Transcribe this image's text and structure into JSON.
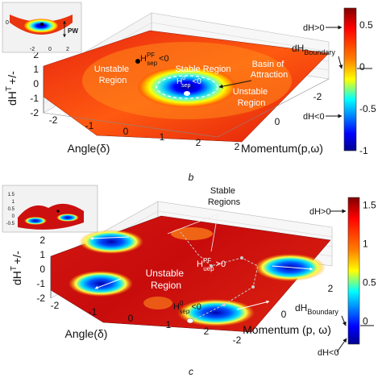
{
  "panel_b": {
    "caption": "b",
    "z_axis_label": "dH",
    "z_axis_superscript": "T",
    "z_axis_suffix": "+/-",
    "z_ticks": [
      "2",
      "1",
      "0",
      "-1",
      "-2"
    ],
    "angle_label": "Angle(δ)",
    "angle_ticks": [
      "-2",
      "-1",
      "0",
      "1",
      "2"
    ],
    "momentum_label": "Momentum(p,ω)",
    "momentum_ticks": [
      "-2",
      "0",
      "2"
    ],
    "colorbar_ticks": [
      "0.5",
      "0",
      "-0.5",
      "-1"
    ],
    "colorbar_range": [
      -1,
      0.7
    ],
    "ann_dh_pos": "dH>0",
    "ann_dh_boundary_main": "dH",
    "ann_dh_boundary_sub": "Boundary",
    "ann_dh_neg": "dH<0",
    "unstable_left_1": "Unstable",
    "unstable_left_2": "Region",
    "stable_region": "Stable Region",
    "basin_1": "Basin of",
    "basin_2": "Attraction",
    "unstable_right_1": "Unstable",
    "unstable_right_2": "Region",
    "h_pf_main": "H",
    "h_pf_sup": "PF",
    "h_pf_sub": "sep",
    "h_pf_rel": "<0",
    "h0_main": "H",
    "h0_sup": "0",
    "h0_sub": "sep",
    "h0_rel": "<0",
    "inset_label": "PW",
    "inset_ticks": [
      "0",
      "-2",
      "0",
      "2"
    ]
  },
  "panel_c": {
    "caption": "c",
    "z_axis_label": "dH",
    "z_axis_superscript": "T",
    "z_axis_suffix": "+/-",
    "z_ticks": [
      "2",
      "1",
      "0",
      "-1",
      "-2"
    ],
    "angle_label": "Angle(δ)",
    "angle_ticks": [
      "-2",
      "-1",
      "0",
      "1",
      "2"
    ],
    "momentum_label": "Momentum (p, ω)",
    "momentum_ticks": [
      "2",
      "0",
      "-2"
    ],
    "colorbar_ticks": [
      "1.5",
      "1",
      "0.5",
      "0"
    ],
    "colorbar_range": [
      -0.3,
      1.6
    ],
    "ann_dh_pos": "dH>0",
    "ann_dh_boundary_main": "dH",
    "ann_dh_boundary_sub": "Boundary",
    "ann_dh_neg": "dH<0",
    "stable_regions_1": "Stable",
    "stable_regions_2": "Regions",
    "unstable_1": "Unstable",
    "unstable_2": "Region",
    "h_pf_main": "H",
    "h_pf_sup": "PF",
    "h_pf_sub": "uep",
    "h_pf_rel": ">0",
    "h0_main": "H",
    "h0_sup": "0",
    "h0_sub": "sep",
    "h0_rel": "<0",
    "inset_ticks": [
      "1.5",
      "1",
      "0.5",
      "0",
      "-0.5"
    ]
  }
}
